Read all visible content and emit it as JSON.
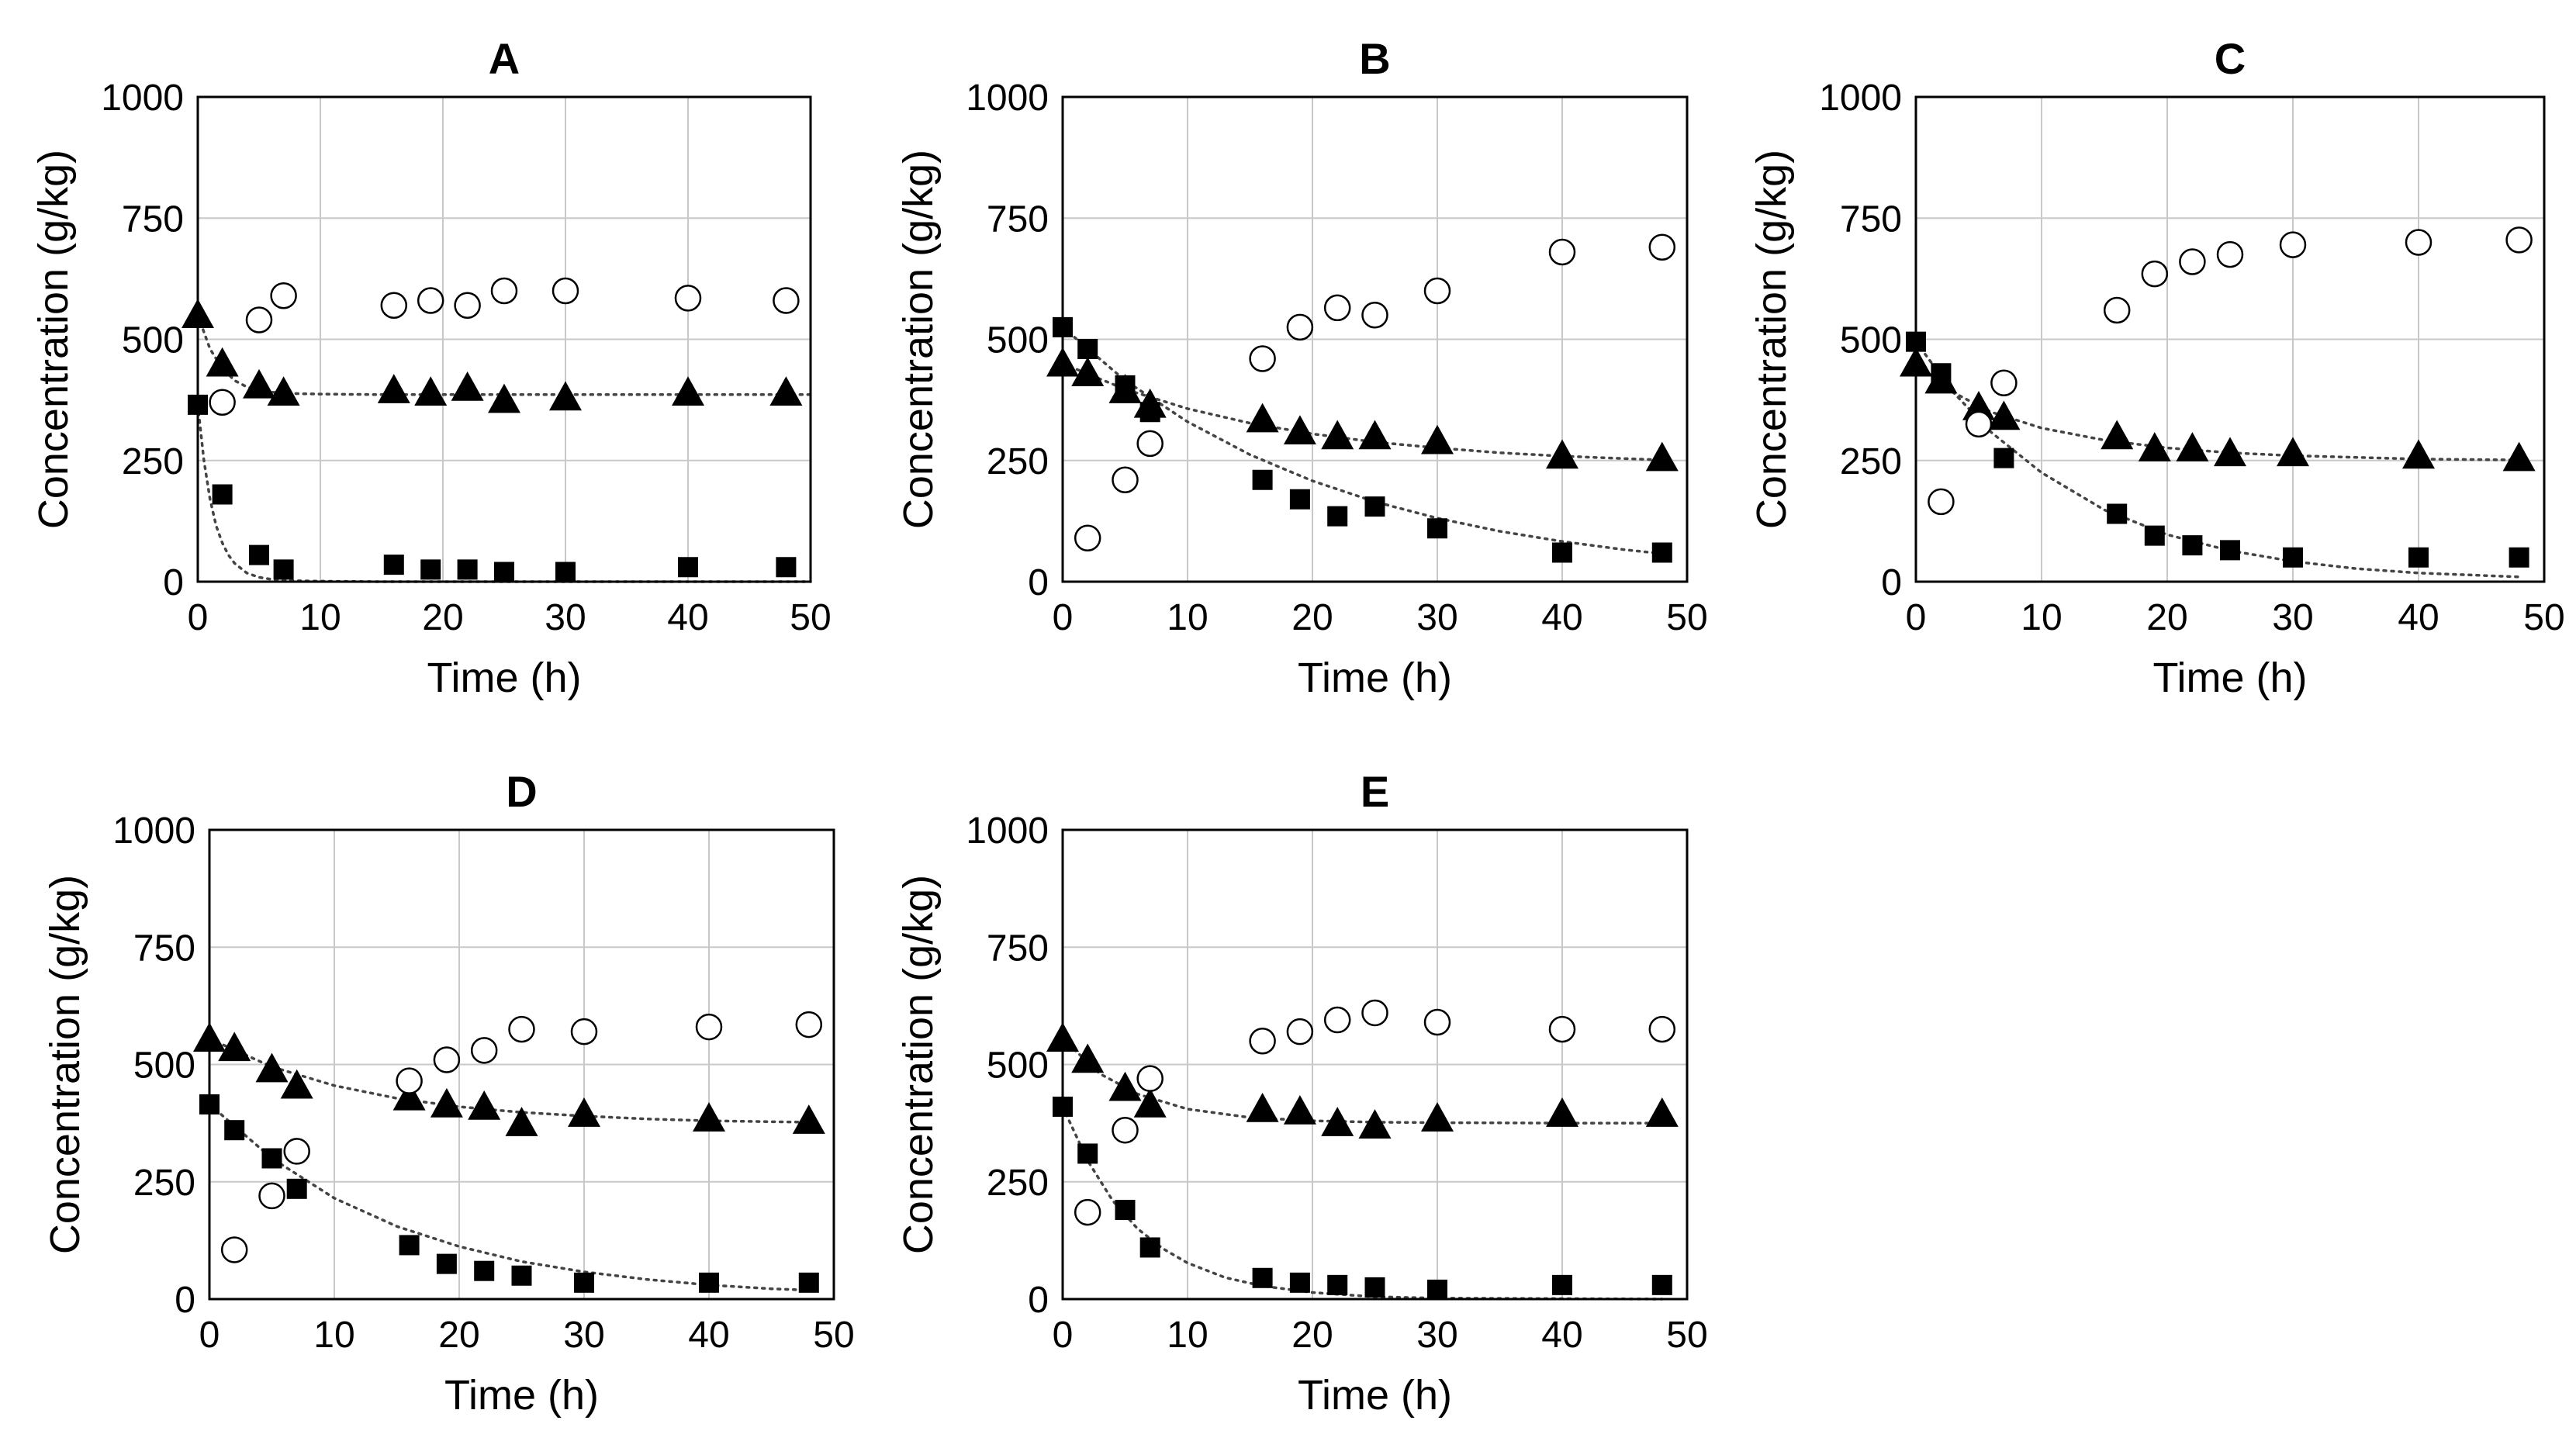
{
  "chart_data": [
    {
      "type": "scatter",
      "title": "A",
      "xlabel": "Time (h)",
      "ylabel": "Concentration (g/kg)",
      "xlim": [
        0,
        50
      ],
      "ylim": [
        0,
        1000
      ],
      "xticks": [
        "0",
        "10",
        "20",
        "30",
        "40",
        "50"
      ],
      "yticks": [
        "0",
        "250",
        "500",
        "750",
        "1000"
      ],
      "grid": true,
      "series": [
        {
          "name": "triangle",
          "marker": "triangle-filled",
          "x": [
            0,
            2,
            5,
            7,
            16,
            19,
            22,
            25,
            30,
            40,
            48
          ],
          "y": [
            550,
            450,
            405,
            390,
            395,
            390,
            400,
            375,
            380,
            390,
            390
          ]
        },
        {
          "name": "square",
          "marker": "square-filled",
          "x": [
            0,
            2,
            5,
            7,
            16,
            19,
            22,
            25,
            30,
            40,
            48
          ],
          "y": [
            365,
            180,
            55,
            25,
            35,
            25,
            25,
            20,
            20,
            30,
            30
          ]
        },
        {
          "name": "circle",
          "marker": "circle-open",
          "x": [
            2,
            5,
            7,
            16,
            19,
            22,
            25,
            30,
            40,
            48
          ],
          "y": [
            370,
            540,
            590,
            570,
            580,
            570,
            600,
            600,
            585,
            580
          ]
        }
      ],
      "fits": [
        {
          "x": [
            0,
            1,
            2,
            3,
            4,
            5,
            6,
            7,
            8,
            10,
            15,
            20,
            30,
            40,
            50
          ],
          "y": [
            550,
            480,
            440,
            415,
            402,
            395,
            391,
            389,
            388,
            387,
            386,
            386,
            386,
            386,
            386
          ]
        },
        {
          "x": [
            0,
            0.5,
            1,
            1.5,
            2,
            2.5,
            3,
            4,
            5,
            6,
            8,
            10,
            15,
            20,
            50
          ],
          "y": [
            365,
            250,
            170,
            115,
            80,
            55,
            38,
            18,
            9,
            5,
            2,
            1,
            0,
            0,
            0
          ]
        }
      ]
    },
    {
      "type": "scatter",
      "title": "B",
      "xlabel": "Time (h)",
      "ylabel": "Concentration (g/kg)",
      "xlim": [
        0,
        50
      ],
      "ylim": [
        0,
        1000
      ],
      "xticks": [
        "0",
        "10",
        "20",
        "30",
        "40",
        "50"
      ],
      "yticks": [
        "0",
        "250",
        "500",
        "750",
        "1000"
      ],
      "grid": true,
      "series": [
        {
          "name": "triangle",
          "marker": "triangle-filled",
          "x": [
            0,
            2,
            5,
            7,
            16,
            19,
            22,
            25,
            30,
            40,
            48
          ],
          "y": [
            450,
            430,
            395,
            365,
            335,
            310,
            300,
            300,
            290,
            260,
            255
          ]
        },
        {
          "name": "square",
          "marker": "square-filled",
          "x": [
            0,
            2,
            5,
            7,
            16,
            19,
            22,
            25,
            30,
            40,
            48
          ],
          "y": [
            525,
            480,
            405,
            350,
            210,
            170,
            135,
            155,
            110,
            60,
            60
          ]
        },
        {
          "name": "circle",
          "marker": "circle-open",
          "x": [
            2,
            5,
            7,
            16,
            19,
            22,
            25,
            30,
            40,
            48
          ],
          "y": [
            90,
            210,
            285,
            460,
            525,
            565,
            550,
            600,
            680,
            690
          ]
        }
      ],
      "fits": [
        {
          "x": [
            0,
            5,
            10,
            15,
            20,
            25,
            30,
            35,
            40,
            45,
            48
          ],
          "y": [
            450,
            397,
            357,
            327,
            305,
            288,
            276,
            266,
            259,
            254,
            251
          ]
        },
        {
          "x": [
            0,
            5,
            10,
            15,
            20,
            25,
            30,
            35,
            40,
            45,
            48
          ],
          "y": [
            525,
            415,
            330,
            262,
            208,
            165,
            131,
            104,
            83,
            66,
            58
          ]
        }
      ]
    },
    {
      "type": "scatter",
      "title": "C",
      "xlabel": "Time (h)",
      "ylabel": "Concentration (g/kg)",
      "xlim": [
        0,
        50
      ],
      "ylim": [
        0,
        1000
      ],
      "xticks": [
        "0",
        "10",
        "20",
        "30",
        "40",
        "50"
      ],
      "yticks": [
        "0",
        "250",
        "500",
        "750",
        "1000"
      ],
      "grid": true,
      "series": [
        {
          "name": "triangle",
          "marker": "triangle-filled",
          "x": [
            0,
            2,
            5,
            7,
            16,
            19,
            22,
            25,
            30,
            40,
            48
          ],
          "y": [
            450,
            415,
            360,
            340,
            300,
            275,
            275,
            265,
            265,
            260,
            255
          ]
        },
        {
          "name": "square",
          "marker": "square-filled",
          "x": [
            0,
            2,
            5,
            7,
            16,
            19,
            22,
            25,
            30,
            40,
            48
          ],
          "y": [
            495,
            430,
            330,
            255,
            140,
            95,
            75,
            65,
            50,
            50,
            50
          ]
        },
        {
          "name": "circle",
          "marker": "circle-open",
          "x": [
            2,
            5,
            7,
            16,
            19,
            22,
            25,
            30,
            40,
            48
          ],
          "y": [
            165,
            325,
            410,
            560,
            635,
            660,
            675,
            695,
            700,
            705
          ]
        }
      ],
      "fits": [
        {
          "x": [
            0,
            3,
            6,
            10,
            15,
            20,
            25,
            30,
            40,
            48
          ],
          "y": [
            450,
            390,
            350,
            317,
            292,
            276,
            266,
            260,
            253,
            251
          ]
        },
        {
          "x": [
            0,
            3,
            6,
            10,
            15,
            20,
            25,
            30,
            35,
            40,
            48
          ],
          "y": [
            495,
            390,
            308,
            225,
            148,
            97,
            64,
            42,
            27,
            18,
            10
          ]
        }
      ]
    },
    {
      "type": "scatter",
      "title": "D",
      "xlabel": "Time (h)",
      "ylabel": "Concentration (g/kg)",
      "xlim": [
        0,
        50
      ],
      "ylim": [
        0,
        1000
      ],
      "xticks": [
        "0",
        "10",
        "20",
        "30",
        "40",
        "50"
      ],
      "yticks": [
        "0",
        "250",
        "500",
        "750",
        "1000"
      ],
      "grid": true,
      "series": [
        {
          "name": "triangle",
          "marker": "triangle-filled",
          "x": [
            0,
            2,
            5,
            7,
            16,
            19,
            22,
            25,
            30,
            40,
            48
          ],
          "y": [
            555,
            535,
            490,
            455,
            430,
            415,
            410,
            375,
            395,
            385,
            380
          ]
        },
        {
          "name": "square",
          "marker": "square-filled",
          "x": [
            0,
            2,
            5,
            7,
            16,
            19,
            22,
            25,
            30,
            40,
            48
          ],
          "y": [
            415,
            360,
            300,
            235,
            115,
            75,
            60,
            50,
            35,
            35,
            35
          ]
        },
        {
          "name": "circle",
          "marker": "circle-open",
          "x": [
            2,
            5,
            7,
            16,
            19,
            22,
            25,
            30,
            40,
            48
          ],
          "y": [
            105,
            220,
            315,
            465,
            510,
            530,
            575,
            570,
            580,
            585
          ]
        }
      ],
      "fits": [
        {
          "x": [
            0,
            5,
            10,
            15,
            20,
            25,
            30,
            35,
            40,
            45,
            48
          ],
          "y": [
            555,
            495,
            455,
            428,
            410,
            398,
            390,
            384,
            380,
            378,
            377
          ]
        },
        {
          "x": [
            0,
            5,
            10,
            15,
            20,
            25,
            30,
            35,
            40,
            45,
            48
          ],
          "y": [
            415,
            300,
            215,
            155,
            112,
            80,
            58,
            42,
            30,
            22,
            19
          ]
        }
      ]
    },
    {
      "type": "scatter",
      "title": "E",
      "xlabel": "Time (h)",
      "ylabel": "Concentration (g/kg)",
      "xlim": [
        0,
        50
      ],
      "ylim": [
        0,
        1000
      ],
      "xticks": [
        "0",
        "10",
        "20",
        "30",
        "40",
        "50"
      ],
      "yticks": [
        "0",
        "250",
        "500",
        "750",
        "1000"
      ],
      "grid": true,
      "series": [
        {
          "name": "triangle",
          "marker": "triangle-filled",
          "x": [
            0,
            2,
            5,
            7,
            16,
            19,
            22,
            25,
            30,
            40,
            48
          ],
          "y": [
            555,
            510,
            450,
            415,
            405,
            400,
            375,
            370,
            385,
            395,
            395
          ]
        },
        {
          "name": "square",
          "marker": "square-filled",
          "x": [
            0,
            2,
            5,
            7,
            16,
            19,
            22,
            25,
            30,
            40,
            48
          ],
          "y": [
            410,
            310,
            190,
            110,
            45,
            35,
            30,
            25,
            20,
            30,
            30
          ]
        },
        {
          "name": "circle",
          "marker": "circle-open",
          "x": [
            2,
            5,
            7,
            16,
            19,
            22,
            25,
            30,
            40,
            48
          ],
          "y": [
            185,
            360,
            470,
            550,
            570,
            595,
            610,
            590,
            575,
            575
          ]
        }
      ],
      "fits": [
        {
          "x": [
            0,
            3,
            6,
            10,
            15,
            20,
            25,
            30,
            40,
            48
          ],
          "y": [
            555,
            480,
            437,
            405,
            387,
            380,
            377,
            376,
            375,
            375
          ]
        },
        {
          "x": [
            0,
            2,
            4,
            6,
            8,
            10,
            13,
            16,
            20,
            25,
            30,
            48
          ],
          "y": [
            410,
            295,
            210,
            150,
            108,
            77,
            46,
            28,
            14,
            5,
            2,
            0
          ]
        }
      ]
    }
  ]
}
